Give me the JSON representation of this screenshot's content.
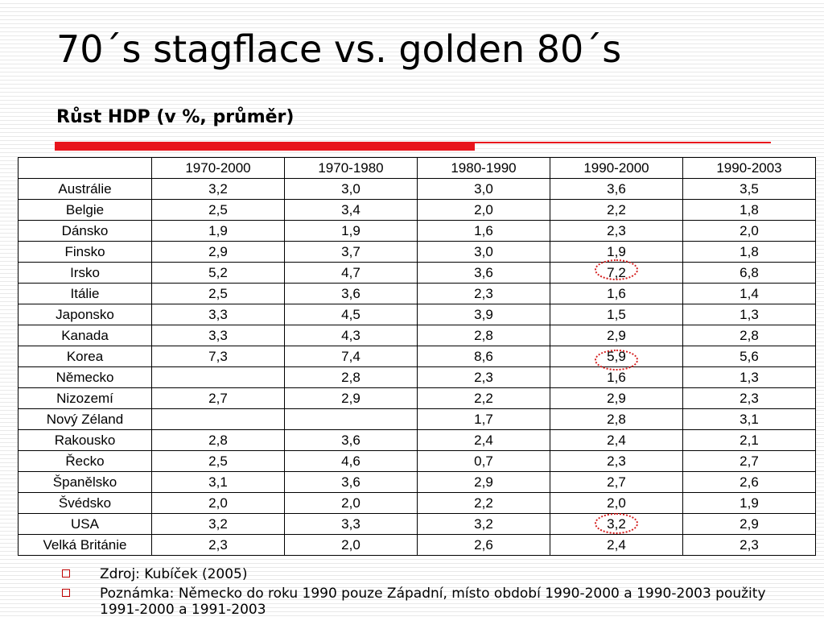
{
  "slide": {
    "title": "70´s stagflace vs. golden 80´s",
    "subtitle": "Růst HDP (v %, průměr)"
  },
  "table": {
    "corner": "",
    "columns": [
      "1970-2000",
      "1970-1980",
      "1980-1990",
      "1990-2000",
      "1990-2003"
    ],
    "rows": [
      {
        "country": "Austrálie",
        "values": [
          "3,2",
          "3,0",
          "3,0",
          "3,6",
          "3,5"
        ]
      },
      {
        "country": "Belgie",
        "values": [
          "2,5",
          "3,4",
          "2,0",
          "2,2",
          "1,8"
        ]
      },
      {
        "country": "Dánsko",
        "values": [
          "1,9",
          "1,9",
          "1,6",
          "2,3",
          "2,0"
        ]
      },
      {
        "country": "Finsko",
        "values": [
          "2,9",
          "3,7",
          "3,0",
          "1,9",
          "1,8"
        ]
      },
      {
        "country": "Irsko",
        "values": [
          "5,2",
          "4,7",
          "3,6",
          "7,2",
          "6,8"
        ]
      },
      {
        "country": "Itálie",
        "values": [
          "2,5",
          "3,6",
          "2,3",
          "1,6",
          "1,4"
        ]
      },
      {
        "country": "Japonsko",
        "values": [
          "3,3",
          "4,5",
          "3,9",
          "1,5",
          "1,3"
        ]
      },
      {
        "country": "Kanada",
        "values": [
          "3,3",
          "4,3",
          "2,8",
          "2,9",
          "2,8"
        ]
      },
      {
        "country": "Korea",
        "values": [
          "7,3",
          "7,4",
          "8,6",
          "5,9",
          "5,6"
        ]
      },
      {
        "country": "Německo",
        "values": [
          "",
          "2,8",
          "2,3",
          "1,6",
          "1,3"
        ]
      },
      {
        "country": "Nizozemí",
        "values": [
          "2,7",
          "2,9",
          "2,2",
          "2,9",
          "2,3"
        ]
      },
      {
        "country": "Nový Zéland",
        "values": [
          "",
          "",
          "1,7",
          "2,8",
          "3,1"
        ]
      },
      {
        "country": "Rakousko",
        "values": [
          "2,8",
          "3,6",
          "2,4",
          "2,4",
          "2,1"
        ]
      },
      {
        "country": "Řecko",
        "values": [
          "2,5",
          "4,6",
          "0,7",
          "2,3",
          "2,7"
        ]
      },
      {
        "country": "Španělsko",
        "values": [
          "3,1",
          "3,6",
          "2,9",
          "2,7",
          "2,6"
        ]
      },
      {
        "country": "Švédsko",
        "values": [
          "2,0",
          "2,0",
          "2,2",
          "2,0",
          "1,9"
        ]
      },
      {
        "country": "USA",
        "values": [
          "3,2",
          "3,3",
          "3,2",
          "3,2",
          "2,9"
        ]
      },
      {
        "country": "Velká Británie",
        "values": [
          "2,3",
          "2,0",
          "2,6",
          "2,4",
          "2,3"
        ]
      }
    ],
    "highlight_color": "#d41c1c"
  },
  "notes": [
    "Zdroj: Kubíček (2005)",
    "Poznámka: Německo do roku 1990 pouze Západní, místo období 1990-2000 a 1990-2003 použity 1991-2000 a 1991-2003"
  ]
}
